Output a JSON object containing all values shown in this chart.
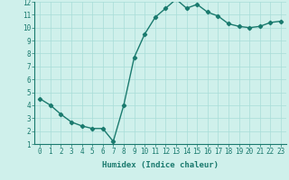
{
  "x": [
    0,
    1,
    2,
    3,
    4,
    5,
    6,
    7,
    8,
    9,
    10,
    11,
    12,
    13,
    14,
    15,
    16,
    17,
    18,
    19,
    20,
    21,
    22,
    23
  ],
  "y": [
    4.5,
    4.0,
    3.3,
    2.7,
    2.4,
    2.2,
    2.2,
    1.2,
    4.0,
    7.7,
    9.5,
    10.8,
    11.5,
    12.2,
    11.5,
    11.8,
    11.2,
    10.9,
    10.3,
    10.1,
    10.0,
    10.1,
    10.4,
    10.5
  ],
  "line_color": "#1a7a6e",
  "marker": "D",
  "markersize": 2.2,
  "linewidth": 1.0,
  "bg_color": "#cff0eb",
  "grid_color": "#a8ddd8",
  "xlabel": "Humidex (Indice chaleur)",
  "xlim": [
    -0.5,
    23.5
  ],
  "ylim": [
    1,
    12
  ],
  "yticks": [
    1,
    2,
    3,
    4,
    5,
    6,
    7,
    8,
    9,
    10,
    11,
    12
  ],
  "xticks": [
    0,
    1,
    2,
    3,
    4,
    5,
    6,
    7,
    8,
    9,
    10,
    11,
    12,
    13,
    14,
    15,
    16,
    17,
    18,
    19,
    20,
    21,
    22,
    23
  ],
  "xlabel_fontsize": 6.5,
  "tick_fontsize": 5.5
}
